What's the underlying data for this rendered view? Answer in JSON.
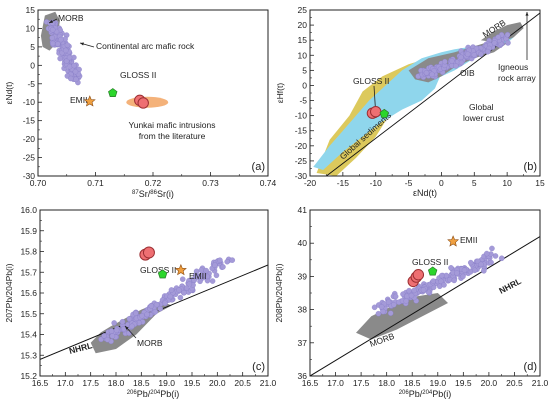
{
  "colors": {
    "point": "#a49ad8",
    "point_stroke": "#8379c4",
    "morb_field": "#8a8a8a",
    "crust_field": "#8a8a8a",
    "lower_crust": "#8fd6ec",
    "sediments": "#dcc95c",
    "orange_field": "#f4b27a",
    "sample": "#ee6f72",
    "sample_stroke": "#9c2f33",
    "gloss": "#2bd62b",
    "emii": "#f0a040"
  },
  "chart_data": [
    {
      "type": "scatter",
      "panel": "(a)",
      "xlabel_sup1": "87",
      "xlabel_a": "Sr/",
      "xlabel_sup2": "86",
      "xlabel_b": "Sr(i)",
      "ylabel": "εNd(t)",
      "xlim": [
        0.7,
        0.74
      ],
      "ylim": [
        -30,
        15
      ],
      "xticks": [
        "0.70",
        "0.71",
        "0.72",
        "0.73",
        "0.74"
      ],
      "yticks": [
        "-30",
        "-25",
        "-20",
        "-15",
        "-10",
        "-5",
        "0",
        "5",
        "10",
        "15"
      ],
      "labels": {
        "morb": "MORB",
        "arc": "Continental arc mafic rock",
        "gloss": "GLOSS II",
        "emii": "EMII",
        "yunkai1": "Yunkai mafic intrusions",
        "yunkai2": "from the literature"
      },
      "samples": [
        [
          0.7177,
          -9.5
        ],
        [
          0.7183,
          -10.2
        ]
      ],
      "gloss": [
        0.713,
        -7.5
      ],
      "emii": [
        0.709,
        -9.8
      ]
    },
    {
      "type": "scatter",
      "panel": "(b)",
      "xlabel": "εNd(t)",
      "ylabel": "εHf(t)",
      "xlim": [
        -20,
        15
      ],
      "ylim": [
        -30,
        25
      ],
      "xticks": [
        "-20",
        "-15",
        "-10",
        "-5",
        "0",
        "5",
        "10",
        "15"
      ],
      "yticks": [
        "-30",
        "-25",
        "-20",
        "-15",
        "-10",
        "-5",
        "0",
        "5",
        "10",
        "15",
        "20",
        "25"
      ],
      "labels": {
        "morb": "MORB",
        "oib": "OIB",
        "igneous1": "Igneous",
        "igneous2": "rock array",
        "gloss": "GLOSS II",
        "lower1": "Global",
        "lower2": "lower crust",
        "sediments": "Global sediments"
      },
      "samples": [
        [
          -10.5,
          -9.2
        ],
        [
          -10.0,
          -8.7
        ]
      ],
      "gloss": [
        -8.7,
        -9.4
      ]
    },
    {
      "type": "scatter",
      "panel": "(c)",
      "xlabel_sup1": "206",
      "xlabel_a": "Pb/",
      "xlabel_sup2": "204",
      "xlabel_b": "Pb(i)",
      "ylabel": "207Pb/204Pb(i)",
      "xlim": [
        16.5,
        21.0
      ],
      "ylim": [
        15.2,
        16.0
      ],
      "xticks": [
        "16.5",
        "17.0",
        "17.5",
        "18.0",
        "18.5",
        "19.0",
        "19.5",
        "20.0",
        "20.5",
        "21.0"
      ],
      "yticks": [
        "15.2",
        "15.3",
        "15.4",
        "15.5",
        "15.6",
        "15.7",
        "15.8",
        "15.9",
        "16.0"
      ],
      "labels": {
        "gloss": "GLOSS II",
        "emii": "EMII",
        "morb": "MORB",
        "nhrl": "NHRL"
      },
      "samples": [
        [
          18.58,
          15.785
        ],
        [
          18.65,
          15.795
        ]
      ],
      "gloss": [
        18.92,
        15.69
      ],
      "emii": [
        19.28,
        15.71
      ],
      "nhrl": [
        [
          16.5,
          15.28
        ],
        [
          21.0,
          15.735
        ]
      ]
    },
    {
      "type": "scatter",
      "panel": "(d)",
      "xlabel_sup1": "206",
      "xlabel_a": "Pb/",
      "xlabel_sup2": "204",
      "xlabel_b": "Pb(i)",
      "ylabel": "208Pb/204Pb(i)",
      "xlim": [
        16.5,
        21.0
      ],
      "ylim": [
        36,
        41
      ],
      "xticks": [
        "16.5",
        "17.0",
        "17.5",
        "18.0",
        "18.5",
        "19.0",
        "19.5",
        "20.0",
        "20.5",
        "21.0"
      ],
      "yticks": [
        "36",
        "37",
        "38",
        "39",
        "40",
        "41"
      ],
      "labels": {
        "gloss": "GLOSS II",
        "emii": "EMII",
        "morb": "MORB",
        "nhrl": "NHRL"
      },
      "samples": [
        [
          18.52,
          38.85
        ],
        [
          18.58,
          38.98
        ],
        [
          18.62,
          39.05
        ]
      ],
      "gloss": [
        18.9,
        39.15
      ],
      "emii": [
        19.3,
        40.05
      ],
      "nhrl": [
        [
          16.5,
          36.0
        ],
        [
          21.0,
          40.2
        ]
      ]
    }
  ]
}
